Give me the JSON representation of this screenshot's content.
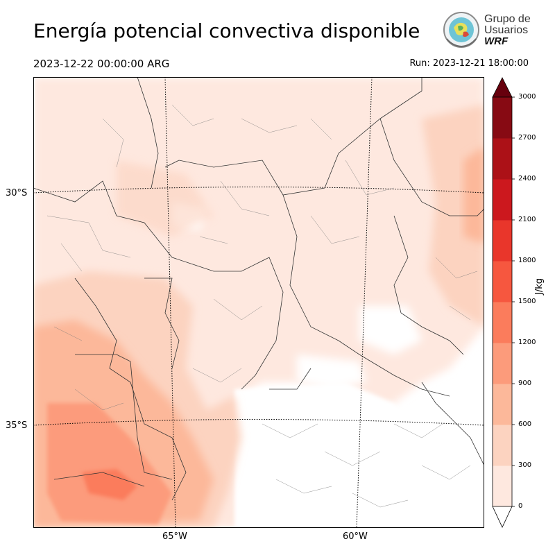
{
  "header": {
    "title": "Energía potencial convectiva disponible",
    "valid_time": "2023-12-22 00:00:00 ARG",
    "run_time": "Run: 2023-12-21 18:00:00"
  },
  "logo": {
    "line1": "Grupo de",
    "line2": "Usuarios",
    "line3": "WRF"
  },
  "map": {
    "lat_labels": [
      "30°S",
      "35°S"
    ],
    "lon_labels": [
      "65°W",
      "60°W"
    ]
  },
  "colorbar": {
    "unit": "J/kg",
    "ticks": [
      "0",
      "300",
      "600",
      "900",
      "1200",
      "1500",
      "1800",
      "2100",
      "2400",
      "2700",
      "3000"
    ],
    "colors": [
      "#fee8df",
      "#fcd3c0",
      "#fcb89a",
      "#fc9b7b",
      "#fb7c5c",
      "#f6573f",
      "#e9362b",
      "#cc181e",
      "#ac1117",
      "#870a13",
      "#67000d"
    ]
  }
}
